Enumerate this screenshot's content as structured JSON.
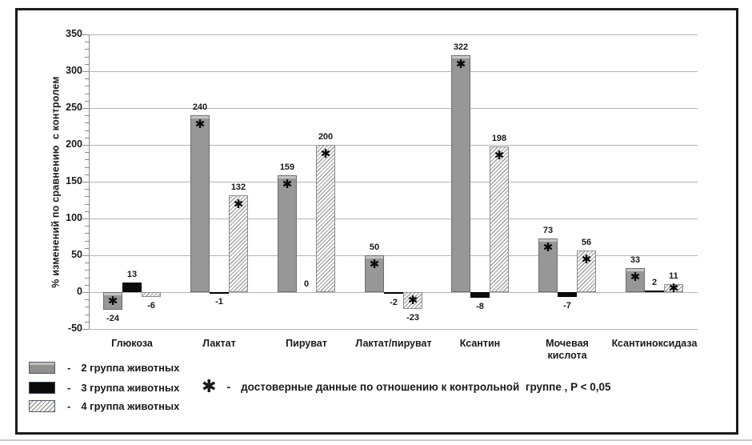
{
  "colors": {
    "bar_gray": "#979797",
    "bar_gray_cap": "#c6c6c6",
    "bar_black": "#0b0b0b",
    "hatch_stripe": "#9e9e9e",
    "grid": "#b3b3b3",
    "axis": "#8a8a8a",
    "text": "#1a1a1a",
    "frame": "#1c1c1c"
  },
  "legend": {
    "dash": "-"
  },
  "chart_data": {
    "type": "bar",
    "title": "",
    "xlabel": "",
    "ylabel": "% изменений по сравнению  с контролем",
    "ylim": [
      -50,
      350
    ],
    "ytick_step": 50,
    "minor_tick_step": 10,
    "yticks": [
      350,
      300,
      250,
      200,
      150,
      100,
      50,
      0,
      -50
    ],
    "grid": true,
    "legend_position": "bottom-left",
    "categories": [
      "Глюкоза",
      "Лактат",
      "Пируват",
      "Лактат/пируват",
      "Ксантин",
      "Мочевая\nкислота",
      "Ксантиноксидаза"
    ],
    "series": [
      {
        "name": "2 группа животных",
        "style": "solid-gray",
        "values": [
          -24,
          240,
          159,
          50,
          322,
          73,
          33
        ],
        "significant": [
          true,
          true,
          true,
          true,
          true,
          true,
          true
        ]
      },
      {
        "name": "3 группа животных",
        "style": "solid-black",
        "values": [
          13,
          -1,
          0,
          -2,
          -8,
          -7,
          2
        ],
        "significant": [
          false,
          false,
          false,
          false,
          false,
          false,
          false
        ]
      },
      {
        "name": "4 группа животных",
        "style": "hatched",
        "values": [
          -6,
          132,
          200,
          -23,
          198,
          56,
          11
        ],
        "significant": [
          false,
          true,
          true,
          true,
          true,
          true,
          true
        ]
      }
    ],
    "significance_note": {
      "symbol": "✱",
      "dash": "-",
      "label": "достоверные данные по отношению к контрольной  группе , P < 0,05"
    }
  }
}
